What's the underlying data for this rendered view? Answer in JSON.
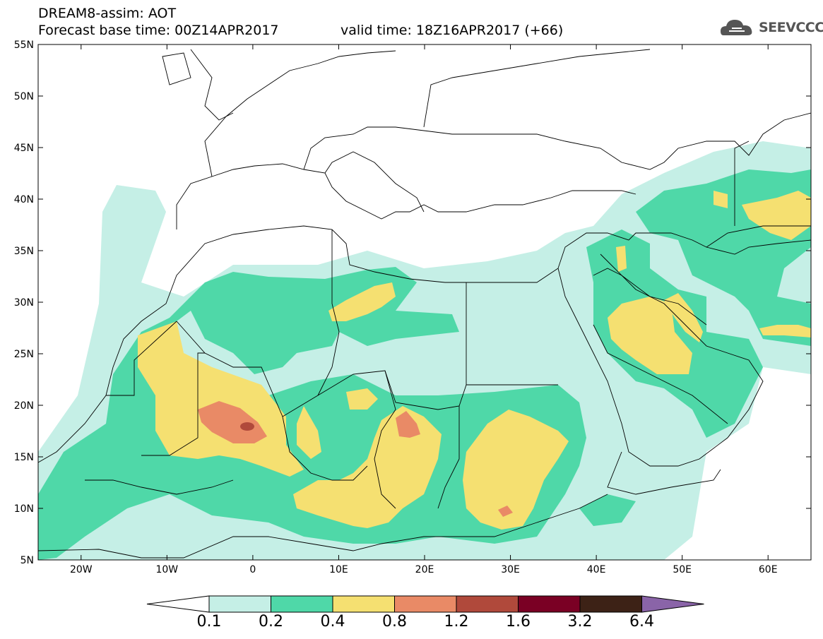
{
  "header": {
    "title": "DREAM8-assim: AOT",
    "base_time": "Forecast base time: 00Z14APR2017",
    "valid_time": "valid time: 18Z16APR2017 (+66)"
  },
  "logo": {
    "text": "SEEVCCC",
    "icon": "cloud-icon"
  },
  "map": {
    "lon_range": [
      -25,
      65
    ],
    "lat_range": [
      5,
      55
    ],
    "lat_ticks": [
      "5N",
      "10N",
      "15N",
      "20N",
      "25N",
      "30N",
      "35N",
      "40N",
      "45N",
      "50N",
      "55N"
    ],
    "lon_ticks": [
      "20W",
      "10W",
      "0",
      "10E",
      "20E",
      "30E",
      "40E",
      "50E",
      "60E"
    ]
  },
  "colorbar": {
    "levels": [
      "0.1",
      "0.2",
      "0.4",
      "0.8",
      "1.2",
      "1.6",
      "3.2",
      "6.4"
    ],
    "colors": [
      "#c5efe6",
      "#4fd8a8",
      "#f5e071",
      "#e98a66",
      "#b0493b",
      "#7a0024",
      "#3d2216",
      "#8a64a8"
    ],
    "under_color": "#ffffff"
  }
}
